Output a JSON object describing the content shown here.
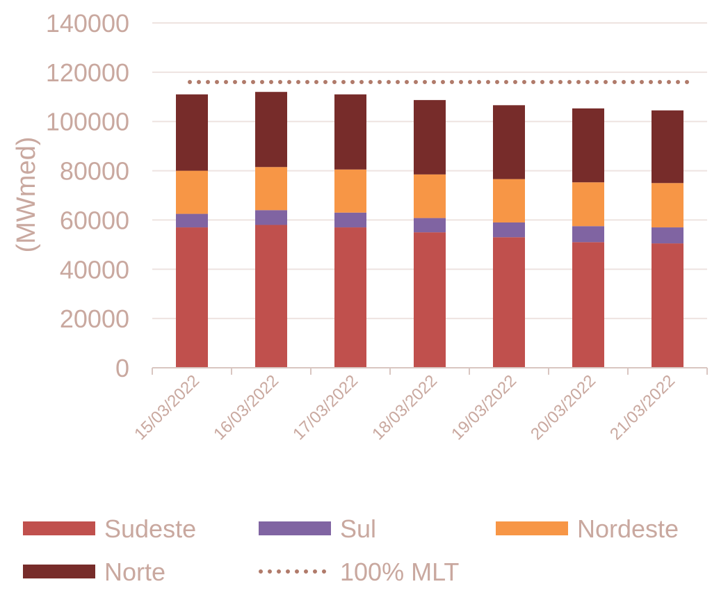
{
  "chart_data": {
    "type": "bar",
    "stacked": true,
    "title": "",
    "xlabel": "",
    "ylabel": "(MWmed)",
    "ylim": [
      0,
      140000
    ],
    "yticks": [
      0,
      20000,
      40000,
      60000,
      80000,
      100000,
      120000,
      140000
    ],
    "grid": true,
    "legend_position": "bottom",
    "categories": [
      "15/03/2022",
      "16/03/2022",
      "17/03/2022",
      "18/03/2022",
      "19/03/2022",
      "20/03/2022",
      "21/03/2022"
    ],
    "series": [
      {
        "name": "Sudeste",
        "color": "#c0504d",
        "values": [
          57000,
          58000,
          57000,
          55000,
          53000,
          51000,
          50500
        ]
      },
      {
        "name": "Sul",
        "color": "#8064a2",
        "values": [
          5500,
          6000,
          6000,
          5800,
          6000,
          6500,
          6500
        ]
      },
      {
        "name": "Nordeste",
        "color": "#f79646",
        "values": [
          17500,
          17500,
          17500,
          17700,
          17600,
          17800,
          18000
        ]
      },
      {
        "name": "Norte",
        "color": "#772c2a",
        "values": [
          31000,
          30500,
          30500,
          30200,
          30000,
          30000,
          29500
        ]
      }
    ],
    "reference_line": {
      "name": "100% MLT",
      "value": 116000,
      "color": "#b07a6a",
      "style": "dotted"
    }
  }
}
